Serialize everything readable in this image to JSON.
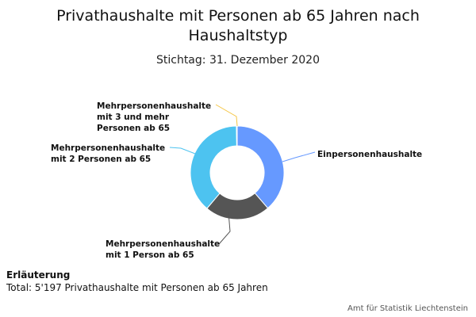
{
  "title": "Privathaushalte mit Personen ab 65 Jahren nach Haushaltstyp",
  "subtitle": "Stichtag: 31. Dezember 2020",
  "note": {
    "heading": "Erläuterung",
    "text": "Total: 5'197 Privathaushalte mit Personen ab 65 Jahren"
  },
  "credit": "Amt für Statistik Liechtenstein",
  "chart_data": {
    "type": "pie",
    "variant": "donut",
    "title": "Privathaushalte mit Personen ab 65 Jahren nach Haushaltstyp",
    "subtitle": "Stichtag: 31. Dezember 2020",
    "total": 5197,
    "slices": [
      {
        "label": "Einpersonenhaushalte",
        "value": 2009,
        "color": "#6699ff"
      },
      {
        "label": "Mehrpersonenhaushalte mit 1 Person ab 65",
        "value": 1171,
        "color": "#555555"
      },
      {
        "label": "Mehrpersonenhaushalte mit 2 Personen ab 65",
        "value": 2003,
        "color": "#4dc3f0"
      },
      {
        "label": "Mehrpersonenhaushalte mit 3 und mehr Personen ab 65",
        "value": 14,
        "color": "#f5c542"
      }
    ],
    "label_lines": [
      [
        "Einpersonenhaushalte"
      ],
      [
        "Mehrpersonenhaushalte",
        "mit 1 Person ab 65"
      ],
      [
        "Mehrpersonenhaushalte",
        "mit 2 Personen ab 65"
      ],
      [
        "Mehrpersonenhaushalte",
        "mit 3 und mehr",
        "Personen ab 65"
      ]
    ]
  }
}
